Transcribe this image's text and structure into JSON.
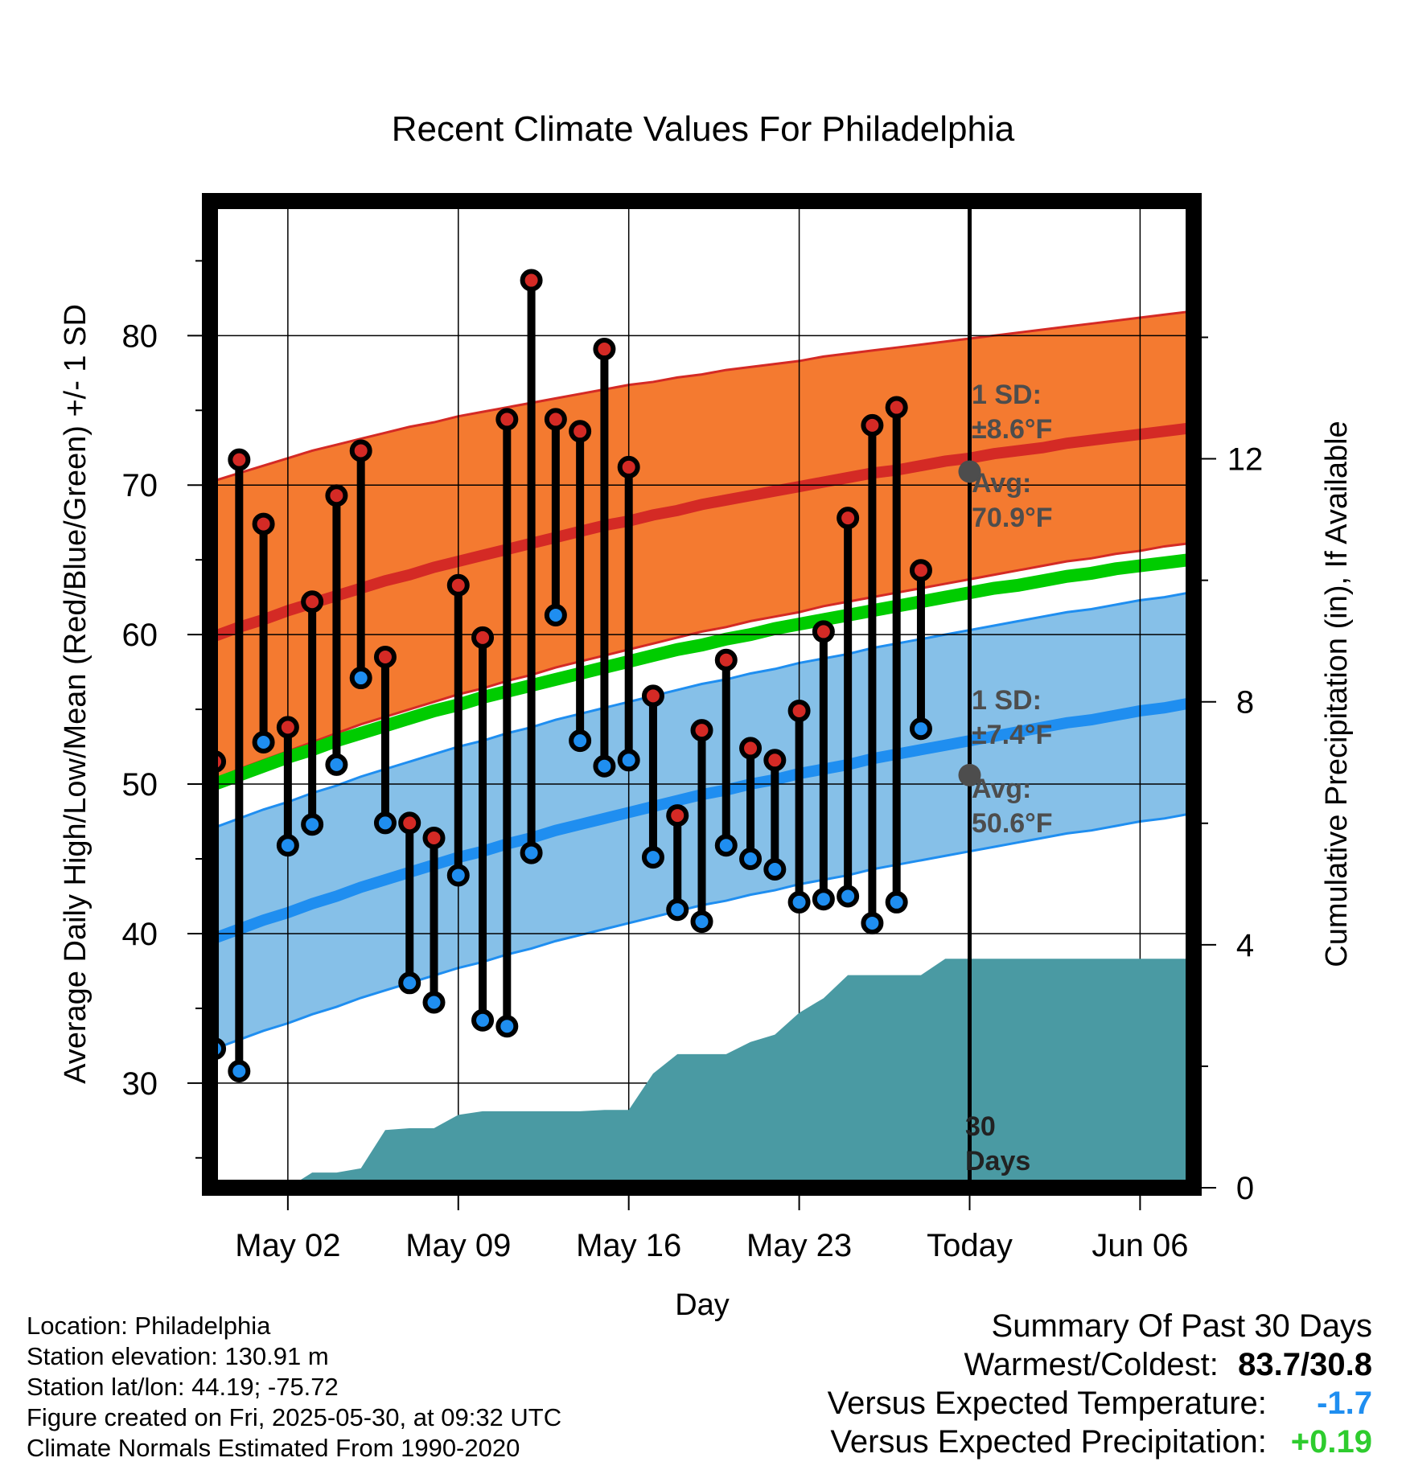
{
  "chart_data": {
    "type": "line",
    "title": "Recent Climate Values For Philadelphia",
    "xlabel": "Day",
    "ylabel": "Average Daily High/Low/Mean (Red/Blue/Green) +/- 1 SD",
    "y2label": "Cumulative Precipitation (in), If Available",
    "xticks": [
      {
        "day": 2,
        "label": "May 02"
      },
      {
        "day": 9,
        "label": "May 09"
      },
      {
        "day": 16,
        "label": "May 16"
      },
      {
        "day": 23,
        "label": "May 23"
      },
      {
        "day": 30,
        "label": "Today"
      },
      {
        "day": 37,
        "label": "Jun 06"
      }
    ],
    "xlim": [
      -1.2,
      39.2
    ],
    "ylim": [
      23,
      89
    ],
    "yticks": [
      30,
      40,
      50,
      60,
      70,
      80
    ],
    "y2lim": [
      0,
      16
    ],
    "y2ticks": [
      0,
      4,
      8,
      12
    ],
    "today_day": 30,
    "days": [
      -1,
      0,
      1,
      2,
      3,
      4,
      5,
      6,
      7,
      8,
      9,
      10,
      11,
      12,
      13,
      14,
      15,
      16,
      17,
      18,
      19,
      20,
      21,
      22,
      23,
      24,
      25,
      26,
      27,
      28,
      29,
      30,
      31,
      32,
      33,
      34,
      35,
      36,
      37,
      38,
      39
    ],
    "normal_high": [
      59.9,
      60.5,
      61.0,
      61.6,
      62.1,
      62.6,
      63.1,
      63.6,
      64.0,
      64.5,
      64.9,
      65.3,
      65.7,
      66.1,
      66.5,
      66.9,
      67.3,
      67.6,
      68.0,
      68.3,
      68.7,
      69.0,
      69.3,
      69.6,
      69.9,
      70.2,
      70.5,
      70.8,
      71.0,
      71.3,
      71.6,
      71.8,
      72.1,
      72.3,
      72.5,
      72.8,
      73.0,
      73.2,
      73.4,
      73.6,
      73.8
    ],
    "high_sd_upper": [
      70.3,
      70.8,
      71.3,
      71.8,
      72.3,
      72.7,
      73.1,
      73.5,
      73.9,
      74.2,
      74.6,
      74.9,
      75.2,
      75.5,
      75.8,
      76.1,
      76.4,
      76.7,
      76.9,
      77.2,
      77.4,
      77.7,
      77.9,
      78.1,
      78.3,
      78.6,
      78.8,
      79.0,
      79.2,
      79.4,
      79.6,
      79.8,
      80.0,
      80.2,
      80.4,
      80.6,
      80.8,
      81.0,
      81.2,
      81.4,
      81.6
    ],
    "high_sd_lower": [
      50.3,
      51.0,
      51.6,
      52.2,
      52.8,
      53.4,
      54.0,
      54.5,
      55.0,
      55.5,
      56.0,
      56.4,
      56.9,
      57.3,
      57.8,
      58.2,
      58.6,
      59.0,
      59.4,
      59.8,
      60.2,
      60.5,
      60.9,
      61.2,
      61.5,
      61.9,
      62.2,
      62.5,
      62.8,
      63.1,
      63.4,
      63.7,
      64.0,
      64.3,
      64.6,
      64.9,
      65.1,
      65.4,
      65.6,
      65.9,
      66.1
    ],
    "normal_mean": [
      50.0,
      50.6,
      51.2,
      51.8,
      52.3,
      52.9,
      53.4,
      53.9,
      54.4,
      54.9,
      55.3,
      55.8,
      56.2,
      56.6,
      57.0,
      57.4,
      57.8,
      58.2,
      58.6,
      59.0,
      59.3,
      59.7,
      60.0,
      60.4,
      60.7,
      61.0,
      61.3,
      61.6,
      61.9,
      62.2,
      62.5,
      62.8,
      63.1,
      63.3,
      63.6,
      63.9,
      64.1,
      64.4,
      64.6,
      64.8,
      65.0
    ],
    "normal_low": [
      39.7,
      40.3,
      40.9,
      41.4,
      42.0,
      42.5,
      43.1,
      43.6,
      44.1,
      44.6,
      45.1,
      45.5,
      46.0,
      46.4,
      46.9,
      47.3,
      47.7,
      48.1,
      48.5,
      48.9,
      49.3,
      49.6,
      50.0,
      50.3,
      50.7,
      51.0,
      51.3,
      51.7,
      52.0,
      52.3,
      52.6,
      52.9,
      53.2,
      53.5,
      53.8,
      54.1,
      54.3,
      54.6,
      54.9,
      55.1,
      55.4
    ],
    "low_sd_upper": [
      47.1,
      47.7,
      48.3,
      48.8,
      49.4,
      49.9,
      50.5,
      51.0,
      51.5,
      52.0,
      52.5,
      52.9,
      53.4,
      53.8,
      54.3,
      54.7,
      55.1,
      55.5,
      55.9,
      56.3,
      56.7,
      57.0,
      57.4,
      57.7,
      58.1,
      58.4,
      58.7,
      59.1,
      59.4,
      59.7,
      60.0,
      60.3,
      60.6,
      60.9,
      61.2,
      61.5,
      61.7,
      62.0,
      62.3,
      62.5,
      62.8
    ],
    "low_sd_lower": [
      32.3,
      32.9,
      33.5,
      34.0,
      34.6,
      35.1,
      35.7,
      36.2,
      36.7,
      37.2,
      37.7,
      38.1,
      38.6,
      39.0,
      39.5,
      39.9,
      40.3,
      40.7,
      41.1,
      41.5,
      41.9,
      42.2,
      42.6,
      42.9,
      43.3,
      43.6,
      43.9,
      44.3,
      44.6,
      44.9,
      45.2,
      45.5,
      45.8,
      46.1,
      46.4,
      46.7,
      46.9,
      47.2,
      47.5,
      47.7,
      48.0
    ],
    "observed": {
      "days": [
        -1,
        0,
        1,
        2,
        3,
        4,
        5,
        6,
        7,
        8,
        9,
        10,
        11,
        12,
        13,
        14,
        15,
        16,
        17,
        18,
        19,
        20,
        21,
        22,
        23,
        24,
        25,
        26,
        27,
        28,
        29
      ],
      "high": [
        51.5,
        71.7,
        67.4,
        53.8,
        62.2,
        69.3,
        72.3,
        58.5,
        47.4,
        46.4,
        63.3,
        59.8,
        74.4,
        83.7,
        74.4,
        73.6,
        79.1,
        71.2,
        55.9,
        47.9,
        53.6,
        58.3,
        52.4,
        51.6,
        54.9,
        60.2,
        67.8,
        74.0,
        75.2,
        64.3,
        null
      ],
      "low": [
        32.3,
        30.8,
        52.8,
        45.9,
        47.3,
        51.3,
        57.1,
        47.4,
        36.7,
        35.4,
        43.9,
        34.2,
        33.8,
        45.4,
        61.3,
        52.9,
        51.2,
        51.6,
        45.1,
        41.6,
        40.8,
        45.9,
        45.0,
        44.3,
        42.1,
        42.3,
        42.5,
        40.7,
        42.1,
        53.7,
        null
      ]
    },
    "precip": {
      "days": [
        2,
        3,
        4,
        5,
        6,
        7,
        8,
        9,
        10,
        11,
        12,
        13,
        14,
        15,
        16,
        17,
        18,
        19,
        20,
        21,
        22,
        23,
        24,
        25,
        26,
        27,
        28,
        29,
        30,
        39
      ],
      "values": [
        0.0,
        0.25,
        0.25,
        0.32,
        0.95,
        0.98,
        0.98,
        1.2,
        1.26,
        1.26,
        1.26,
        1.26,
        1.26,
        1.28,
        1.28,
        1.88,
        2.2,
        2.2,
        2.2,
        2.4,
        2.52,
        2.88,
        3.12,
        3.5,
        3.5,
        3.5,
        3.5,
        3.77,
        3.77,
        3.77
      ]
    },
    "annotations": {
      "high_sd_label": "1 SD:",
      "high_sd_value": "±8.6°F",
      "high_avg_label": "Avg:",
      "high_avg_value": "70.9°F",
      "high_avg": 70.9,
      "low_sd_label": "1 SD:",
      "low_sd_value": "±7.4°F",
      "low_avg_label": "Avg:",
      "low_avg_value": "50.6°F",
      "low_avg": 50.6,
      "days_label_1": "30",
      "days_label_2": "Days"
    },
    "colors": {
      "high_band": "#f47a30",
      "high_line": "#d42a25",
      "low_band": "#86c0e8",
      "low_line": "#1f8ef0",
      "mean_line": "#00cc00",
      "precip": "#4a9aa3",
      "high_marker": "#d42a25",
      "low_marker": "#1f8ef0",
      "today_marker": "#4d4d4d"
    }
  },
  "footer": {
    "location": "Location: Philadelphia",
    "elevation": "Station elevation: 130.91 m",
    "latlon": "Station lat/lon: 44.19; -75.72",
    "created": "Figure created on Fri, 2025-05-30, at 09:32 UTC",
    "normals": "Climate Normals Estimated From 1990-2020"
  },
  "summary": {
    "title": "Summary Of Past 30 Days",
    "warm_cold_label": "Warmest/Coldest:",
    "warm_cold_value": "83.7/30.8",
    "temp_label": "Versus Expected Temperature:",
    "temp_value": "-1.7",
    "temp_color": "#1f8ef0",
    "precip_label": "Versus Expected Precipitation:",
    "precip_value": "+0.19",
    "precip_color": "#2ecc2e"
  }
}
